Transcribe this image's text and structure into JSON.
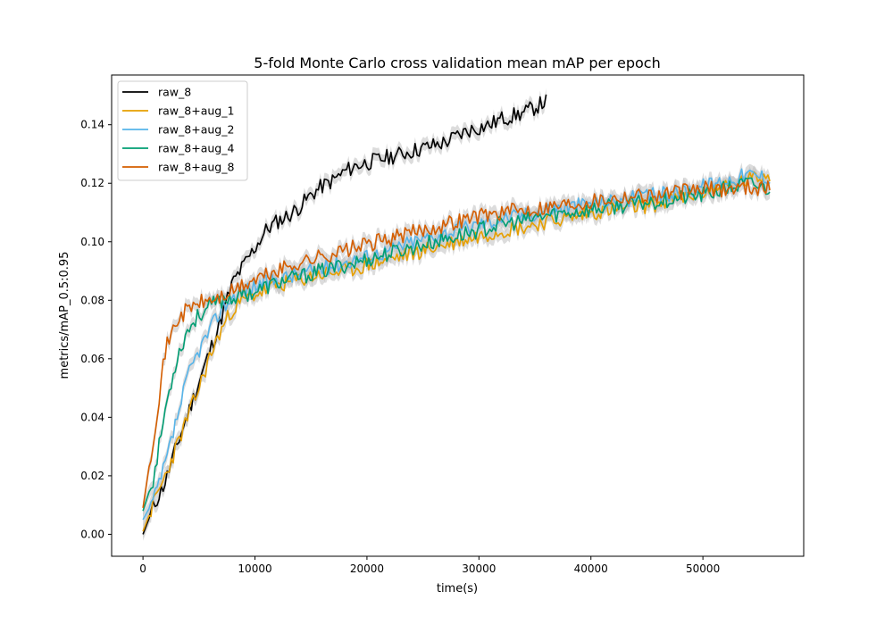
{
  "chart_data": {
    "type": "line",
    "title": "5-fold Monte Carlo cross validation mean mAP per epoch",
    "xlabel": "time(s)",
    "ylabel": "metrics/mAP_0.5:0.95",
    "xlim": [
      -2800,
      59000
    ],
    "ylim": [
      -0.0075,
      0.157
    ],
    "xticks": [
      0,
      10000,
      20000,
      30000,
      40000,
      50000
    ],
    "yticks": [
      0.0,
      0.02,
      0.04,
      0.06,
      0.08,
      0.1,
      0.12,
      0.14
    ],
    "xtick_labels": [
      "0",
      "10000",
      "20000",
      "30000",
      "40000",
      "50000"
    ],
    "ytick_labels": [
      "0.00",
      "0.02",
      "0.04",
      "0.06",
      "0.08",
      "0.10",
      "0.12",
      "0.14"
    ],
    "grid": false,
    "legend_position": "upper-left",
    "band_color": "#bfbfbf",
    "series": [
      {
        "name": "raw_8",
        "color": "#000000",
        "x": [
          0,
          1000,
          2000,
          3000,
          4000,
          5000,
          6000,
          7000,
          8000,
          9000,
          10000,
          11000,
          12000,
          13000,
          14000,
          15000,
          16000,
          17000,
          18000,
          19000,
          20000,
          21000,
          22000,
          23000,
          24000,
          25000,
          26000,
          27000,
          28000,
          29000,
          30000,
          31000,
          32000,
          33000,
          34000,
          35000,
          36000
        ],
        "y": [
          0.0,
          0.01,
          0.018,
          0.03,
          0.041,
          0.052,
          0.063,
          0.074,
          0.086,
          0.092,
          0.098,
          0.104,
          0.107,
          0.109,
          0.112,
          0.116,
          0.119,
          0.121,
          0.124,
          0.126,
          0.127,
          0.128,
          0.129,
          0.13,
          0.131,
          0.132,
          0.133,
          0.134,
          0.136,
          0.138,
          0.139,
          0.14,
          0.142,
          0.143,
          0.144,
          0.146,
          0.148
        ]
      },
      {
        "name": "raw_8+aug_1",
        "color": "#e69f00",
        "x": [
          0,
          1000,
          2000,
          3000,
          4000,
          5000,
          6000,
          7000,
          8000,
          9000,
          10000,
          12000,
          14000,
          16000,
          18000,
          20000,
          22000,
          24000,
          26000,
          28000,
          30000,
          32000,
          34000,
          36000,
          38000,
          40000,
          42000,
          44000,
          46000,
          48000,
          50000,
          52000,
          54000,
          56000
        ],
        "y": [
          0.001,
          0.011,
          0.02,
          0.03,
          0.04,
          0.05,
          0.061,
          0.07,
          0.077,
          0.08,
          0.082,
          0.085,
          0.087,
          0.089,
          0.09,
          0.092,
          0.094,
          0.096,
          0.098,
          0.1,
          0.102,
          0.104,
          0.105,
          0.107,
          0.108,
          0.11,
          0.111,
          0.112,
          0.113,
          0.115,
          0.117,
          0.119,
          0.121,
          0.123
        ]
      },
      {
        "name": "raw_8+aug_2",
        "color": "#56b4e9",
        "x": [
          0,
          1000,
          2000,
          3000,
          4000,
          5000,
          6000,
          7000,
          8000,
          9000,
          10000,
          12000,
          14000,
          16000,
          18000,
          20000,
          22000,
          24000,
          26000,
          28000,
          30000,
          32000,
          34000,
          36000,
          38000,
          40000,
          42000,
          44000,
          46000,
          48000,
          50000,
          52000,
          54000,
          56000
        ],
        "y": [
          0.005,
          0.012,
          0.024,
          0.039,
          0.054,
          0.063,
          0.07,
          0.077,
          0.081,
          0.083,
          0.085,
          0.087,
          0.089,
          0.091,
          0.093,
          0.095,
          0.097,
          0.1,
          0.102,
          0.104,
          0.106,
          0.108,
          0.109,
          0.111,
          0.112,
          0.113,
          0.114,
          0.115,
          0.116,
          0.117,
          0.119,
          0.121,
          0.123,
          0.122
        ]
      },
      {
        "name": "raw_8+aug_4",
        "color": "#009e73",
        "x": [
          0,
          1000,
          2000,
          3000,
          4000,
          5000,
          6000,
          7000,
          8000,
          9000,
          10000,
          12000,
          14000,
          16000,
          18000,
          20000,
          22000,
          24000,
          26000,
          28000,
          30000,
          32000,
          34000,
          36000,
          38000,
          40000,
          42000,
          44000,
          46000,
          48000,
          50000,
          52000,
          54000,
          56000
        ],
        "y": [
          0.008,
          0.02,
          0.043,
          0.06,
          0.07,
          0.075,
          0.078,
          0.08,
          0.081,
          0.082,
          0.083,
          0.086,
          0.088,
          0.09,
          0.092,
          0.094,
          0.096,
          0.098,
          0.1,
          0.102,
          0.104,
          0.106,
          0.107,
          0.109,
          0.11,
          0.111,
          0.112,
          0.113,
          0.114,
          0.115,
          0.116,
          0.118,
          0.12,
          0.118
        ]
      },
      {
        "name": "raw_8+aug_8",
        "color": "#d55e00",
        "x": [
          0,
          1000,
          2000,
          3000,
          4000,
          5000,
          6000,
          7000,
          8000,
          9000,
          10000,
          12000,
          14000,
          16000,
          18000,
          20000,
          22000,
          24000,
          26000,
          28000,
          30000,
          32000,
          34000,
          36000,
          38000,
          40000,
          42000,
          44000,
          46000,
          48000,
          50000,
          52000,
          54000,
          56000
        ],
        "y": [
          0.009,
          0.035,
          0.063,
          0.073,
          0.077,
          0.079,
          0.08,
          0.081,
          0.083,
          0.085,
          0.087,
          0.09,
          0.093,
          0.095,
          0.097,
          0.099,
          0.101,
          0.103,
          0.105,
          0.107,
          0.109,
          0.11,
          0.111,
          0.112,
          0.113,
          0.114,
          0.115,
          0.116,
          0.116,
          0.117,
          0.118,
          0.118,
          0.119,
          0.118
        ]
      }
    ]
  }
}
